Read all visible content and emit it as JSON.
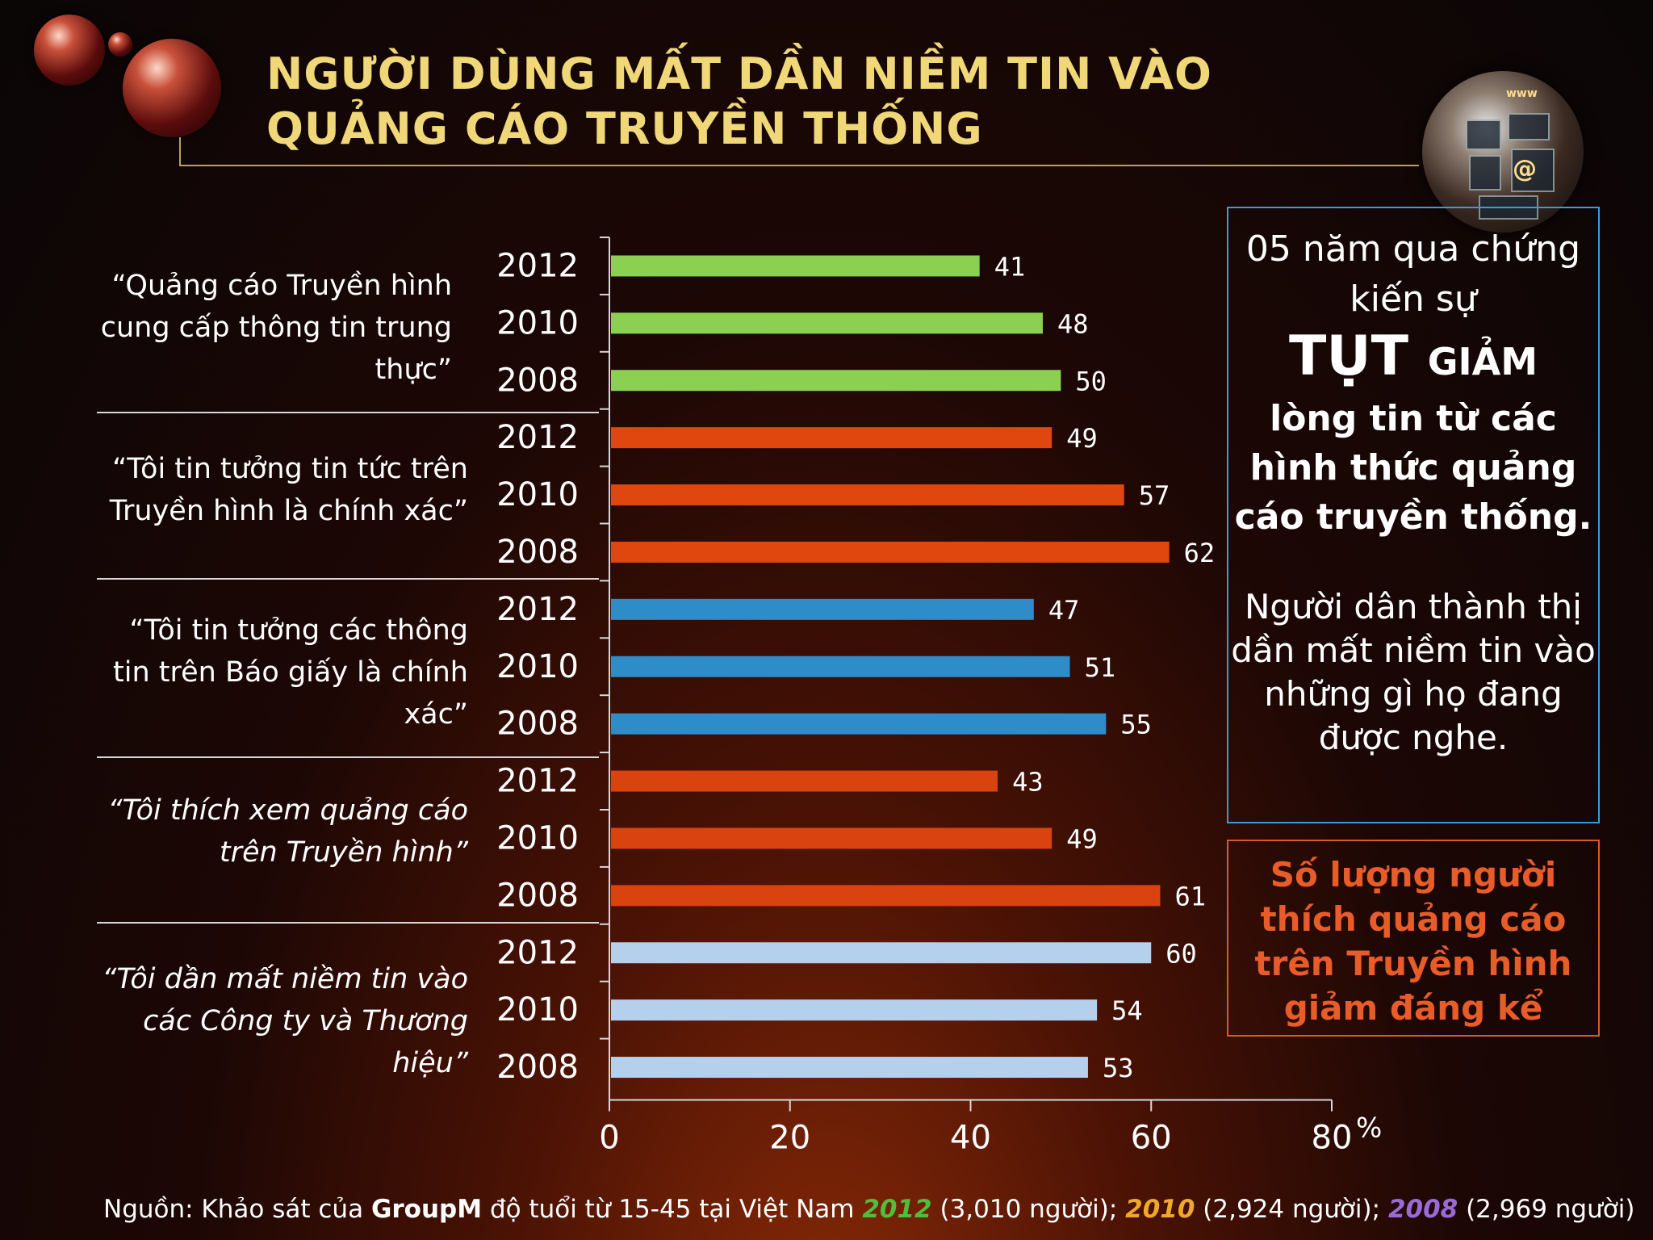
{
  "title": "NGƯỜI DÙNG MẤT DẦN NIỀM TIN VÀO QUẢNG CÁO TRUYỀN THỐNG",
  "chart_data": {
    "type": "bar",
    "orientation": "horizontal",
    "xlim": [
      0,
      80
    ],
    "x_ticks": [
      "0",
      "20",
      "40",
      "60",
      "80"
    ],
    "x_unit": "%",
    "grid": false,
    "groups": [
      {
        "label": "“Quảng cáo Truyền hình cung cấp thông tin trung thực”",
        "italic": false,
        "color": "#8bd050",
        "bars": [
          {
            "year": "2012",
            "value": 41
          },
          {
            "year": "2010",
            "value": 48
          },
          {
            "year": "2008",
            "value": 50
          }
        ]
      },
      {
        "label": "“Tôi tin tưởng tin tức trên Truyền hình là chính xác”",
        "italic": false,
        "color": "#e0470f",
        "bars": [
          {
            "year": "2012",
            "value": 49
          },
          {
            "year": "2010",
            "value": 57
          },
          {
            "year": "2008",
            "value": 62
          }
        ]
      },
      {
        "label": "“Tôi tin tưởng các thông tin trên Báo giấy là chính xác”",
        "italic": false,
        "color": "#2e8cc8",
        "bars": [
          {
            "year": "2012",
            "value": 47
          },
          {
            "year": "2010",
            "value": 51
          },
          {
            "year": "2008",
            "value": 55
          }
        ]
      },
      {
        "label": "“Tôi thích xem quảng cáo trên Truyền hình”",
        "italic": true,
        "color": "#d8430f",
        "bars": [
          {
            "year": "2012",
            "value": 43
          },
          {
            "year": "2010",
            "value": 49
          },
          {
            "year": "2008",
            "value": 61
          }
        ]
      },
      {
        "label": "“Tôi dần mất niềm tin vào các Công ty và Thương hiệu”",
        "italic": true,
        "color": "#b4d0ec",
        "bars": [
          {
            "year": "2012",
            "value": 60
          },
          {
            "year": "2010",
            "value": 54
          },
          {
            "year": "2008",
            "value": 53
          }
        ]
      }
    ]
  },
  "side_box": {
    "line1": "05 năm qua chứng kiến sự",
    "big_word_a": "TỤT",
    "big_word_b": "GIẢM",
    "bold_text": "lòng tin từ các hình thức quảng cáo truyền thống.",
    "para2": "Người dân thành thị dần mất niềm tin vào những gì họ đang được nghe."
  },
  "orange_box": {
    "text": "Số lượng người thích quảng cáo trên Truyền hình giảm đáng kể"
  },
  "source": {
    "prefix": "Nguồn: Khảo sát của",
    "org": "GroupM",
    "middle": "độ tuổi từ 15-45 tại Việt Nam",
    "y2012": "2012",
    "n2012": "(3,010 người);",
    "y2010": "2010",
    "n2010": "(2,924 người);",
    "y2008": "2008",
    "n2008": "(2,969 người)"
  },
  "colors": {
    "title": "#f0d878",
    "green": "#8bd050",
    "orange": "#e0470f",
    "blue": "#2e8cc8",
    "light_blue": "#b4d0ec"
  }
}
